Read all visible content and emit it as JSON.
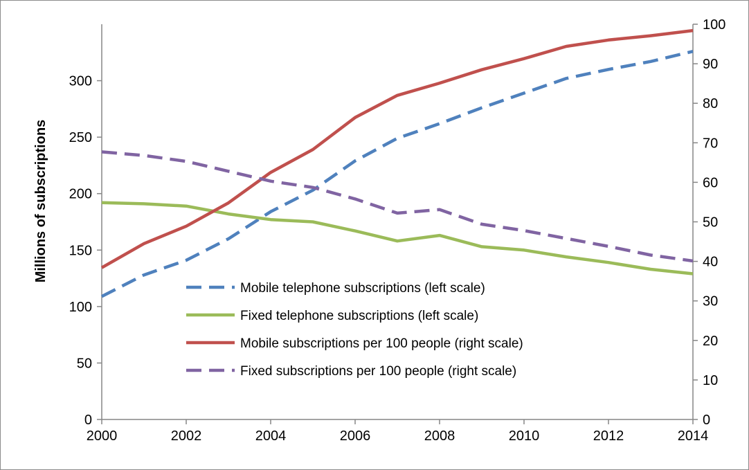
{
  "chart_data": {
    "type": "line",
    "title": "",
    "xlabel": "",
    "ylabel": "Millions of subscriptions",
    "y2label": "",
    "x": [
      2000,
      2001,
      2002,
      2003,
      2004,
      2005,
      2006,
      2007,
      2008,
      2009,
      2010,
      2011,
      2012,
      2013,
      2014
    ],
    "xticks": [
      2000,
      2002,
      2004,
      2006,
      2008,
      2010,
      2012,
      2014
    ],
    "ylim": [
      0,
      350
    ],
    "yticks": [
      0,
      50,
      100,
      150,
      200,
      250,
      300
    ],
    "y2lim": [
      0,
      100
    ],
    "y2ticks": [
      0,
      10,
      20,
      30,
      40,
      50,
      60,
      70,
      80,
      90,
      100
    ],
    "grid": false,
    "legend_position": "center",
    "series": [
      {
        "name": "Mobile telephone subscriptions (left scale)",
        "axis": "left",
        "style": "dashed",
        "color": "#4F81BD",
        "values": [
          109,
          128,
          141,
          160,
          184,
          203,
          229,
          249,
          262,
          276,
          289,
          302,
          310,
          317,
          326
        ]
      },
      {
        "name": "Fixed telephone subscriptions (left scale)",
        "axis": "left",
        "style": "solid",
        "color": "#9BBB59",
        "values": [
          192,
          191,
          189,
          182,
          177,
          175,
          167,
          158,
          163,
          153,
          150,
          144,
          139,
          133,
          129
        ]
      },
      {
        "name": "Mobile subscriptions per 100 people (right scale)",
        "axis": "right",
        "style": "solid",
        "color": "#C0504D",
        "values": [
          38.4,
          44.5,
          48.9,
          54.8,
          62.5,
          68.3,
          76.4,
          82.0,
          85.1,
          88.5,
          91.3,
          94.4,
          96.0,
          97.1,
          98.4
        ]
      },
      {
        "name": "Fixed subscriptions per 100 people (right scale)",
        "axis": "right",
        "style": "dashed",
        "color": "#8064A2",
        "values": [
          67.7,
          66.8,
          65.3,
          62.8,
          60.3,
          58.7,
          55.8,
          52.2,
          53.1,
          49.4,
          47.8,
          45.8,
          43.8,
          41.6,
          40.1
        ]
      }
    ]
  }
}
